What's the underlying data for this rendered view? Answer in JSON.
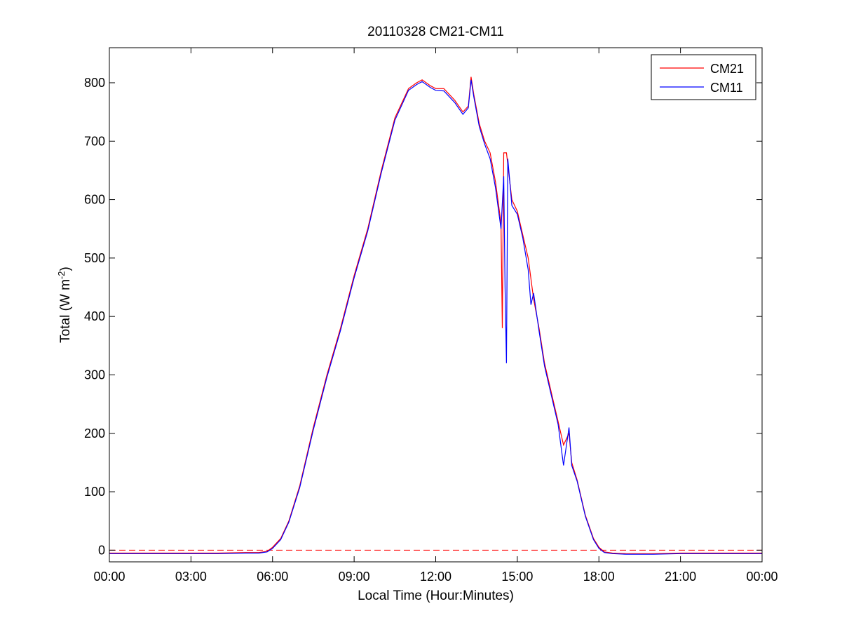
{
  "chart_data": {
    "type": "line",
    "title": "20110328 CM21-CM11",
    "xlabel": "Local Time (Hour:Minutes)",
    "ylabel_main": "Total (W m",
    "ylabel_exp": "-2",
    "ylabel_close": ")",
    "xlim": [
      0,
      24
    ],
    "ylim": [
      -20,
      860
    ],
    "x_ticks": [
      0,
      3,
      6,
      9,
      12,
      15,
      18,
      21,
      24
    ],
    "x_tick_labels": [
      "00:00",
      "03:00",
      "06:00",
      "09:00",
      "12:00",
      "15:00",
      "18:00",
      "21:00",
      "00:00"
    ],
    "y_ticks": [
      0,
      100,
      200,
      300,
      400,
      500,
      600,
      700,
      800
    ],
    "y_tick_labels": [
      "0",
      "100",
      "200",
      "300",
      "400",
      "500",
      "600",
      "700",
      "800"
    ],
    "reference_line": {
      "y": 0,
      "style": "dashed",
      "color": "#ff0000"
    },
    "legend_position": "top-right",
    "series": [
      {
        "name": "CM21",
        "color": "#ff0000",
        "points": [
          [
            0,
            -5
          ],
          [
            1,
            -5
          ],
          [
            2,
            -5
          ],
          [
            3,
            -5
          ],
          [
            4,
            -5
          ],
          [
            5,
            -4
          ],
          [
            5.5,
            -4
          ],
          [
            5.8,
            -2
          ],
          [
            6.0,
            5
          ],
          [
            6.3,
            20
          ],
          [
            6.6,
            50
          ],
          [
            7.0,
            110
          ],
          [
            7.5,
            210
          ],
          [
            8.0,
            300
          ],
          [
            8.5,
            380
          ],
          [
            9.0,
            470
          ],
          [
            9.5,
            550
          ],
          [
            10.0,
            650
          ],
          [
            10.5,
            740
          ],
          [
            11.0,
            790
          ],
          [
            11.3,
            800
          ],
          [
            11.5,
            805
          ],
          [
            11.8,
            795
          ],
          [
            12.0,
            790
          ],
          [
            12.3,
            790
          ],
          [
            12.7,
            770
          ],
          [
            13.0,
            750
          ],
          [
            13.2,
            760
          ],
          [
            13.3,
            810
          ],
          [
            13.4,
            780
          ],
          [
            13.6,
            730
          ],
          [
            13.8,
            700
          ],
          [
            14.0,
            680
          ],
          [
            14.2,
            630
          ],
          [
            14.4,
            560
          ],
          [
            14.45,
            380
          ],
          [
            14.5,
            680
          ],
          [
            14.6,
            680
          ],
          [
            14.8,
            600
          ],
          [
            15.0,
            580
          ],
          [
            15.2,
            540
          ],
          [
            15.4,
            500
          ],
          [
            15.6,
            430
          ],
          [
            15.8,
            380
          ],
          [
            16.0,
            320
          ],
          [
            16.3,
            260
          ],
          [
            16.5,
            220
          ],
          [
            16.7,
            180
          ],
          [
            16.9,
            200
          ],
          [
            17.0,
            150
          ],
          [
            17.2,
            120
          ],
          [
            17.5,
            60
          ],
          [
            17.8,
            20
          ],
          [
            18.0,
            5
          ],
          [
            18.2,
            -3
          ],
          [
            18.5,
            -5
          ],
          [
            19,
            -6
          ],
          [
            20,
            -6
          ],
          [
            21,
            -5
          ],
          [
            22,
            -5
          ],
          [
            23,
            -5
          ],
          [
            24,
            -5
          ]
        ]
      },
      {
        "name": "CM11",
        "color": "#0000ff",
        "points": [
          [
            0,
            -6
          ],
          [
            1,
            -6
          ],
          [
            2,
            -6
          ],
          [
            3,
            -6
          ],
          [
            4,
            -6
          ],
          [
            5,
            -5
          ],
          [
            5.5,
            -5
          ],
          [
            5.8,
            -3
          ],
          [
            6.0,
            3
          ],
          [
            6.3,
            18
          ],
          [
            6.6,
            48
          ],
          [
            7.0,
            107
          ],
          [
            7.5,
            206
          ],
          [
            8.0,
            296
          ],
          [
            8.5,
            376
          ],
          [
            9.0,
            466
          ],
          [
            9.5,
            546
          ],
          [
            10.0,
            646
          ],
          [
            10.5,
            736
          ],
          [
            11.0,
            787
          ],
          [
            11.3,
            797
          ],
          [
            11.5,
            802
          ],
          [
            11.8,
            792
          ],
          [
            12.0,
            787
          ],
          [
            12.3,
            786
          ],
          [
            12.7,
            766
          ],
          [
            13.0,
            746
          ],
          [
            13.2,
            757
          ],
          [
            13.3,
            805
          ],
          [
            13.4,
            776
          ],
          [
            13.6,
            725
          ],
          [
            13.8,
            695
          ],
          [
            14.0,
            670
          ],
          [
            14.2,
            620
          ],
          [
            14.4,
            550
          ],
          [
            14.5,
            640
          ],
          [
            14.55,
            450
          ],
          [
            14.6,
            320
          ],
          [
            14.65,
            670
          ],
          [
            14.8,
            590
          ],
          [
            15.0,
            575
          ],
          [
            15.2,
            535
          ],
          [
            15.4,
            480
          ],
          [
            15.5,
            420
          ],
          [
            15.6,
            440
          ],
          [
            15.8,
            375
          ],
          [
            16.0,
            315
          ],
          [
            16.3,
            255
          ],
          [
            16.5,
            215
          ],
          [
            16.7,
            145
          ],
          [
            16.9,
            210
          ],
          [
            17.0,
            145
          ],
          [
            17.2,
            118
          ],
          [
            17.5,
            58
          ],
          [
            17.8,
            18
          ],
          [
            18.0,
            3
          ],
          [
            18.2,
            -4
          ],
          [
            18.5,
            -6
          ],
          [
            19,
            -7
          ],
          [
            20,
            -7
          ],
          [
            21,
            -6
          ],
          [
            22,
            -6
          ],
          [
            23,
            -6
          ],
          [
            24,
            -6
          ]
        ]
      }
    ]
  }
}
